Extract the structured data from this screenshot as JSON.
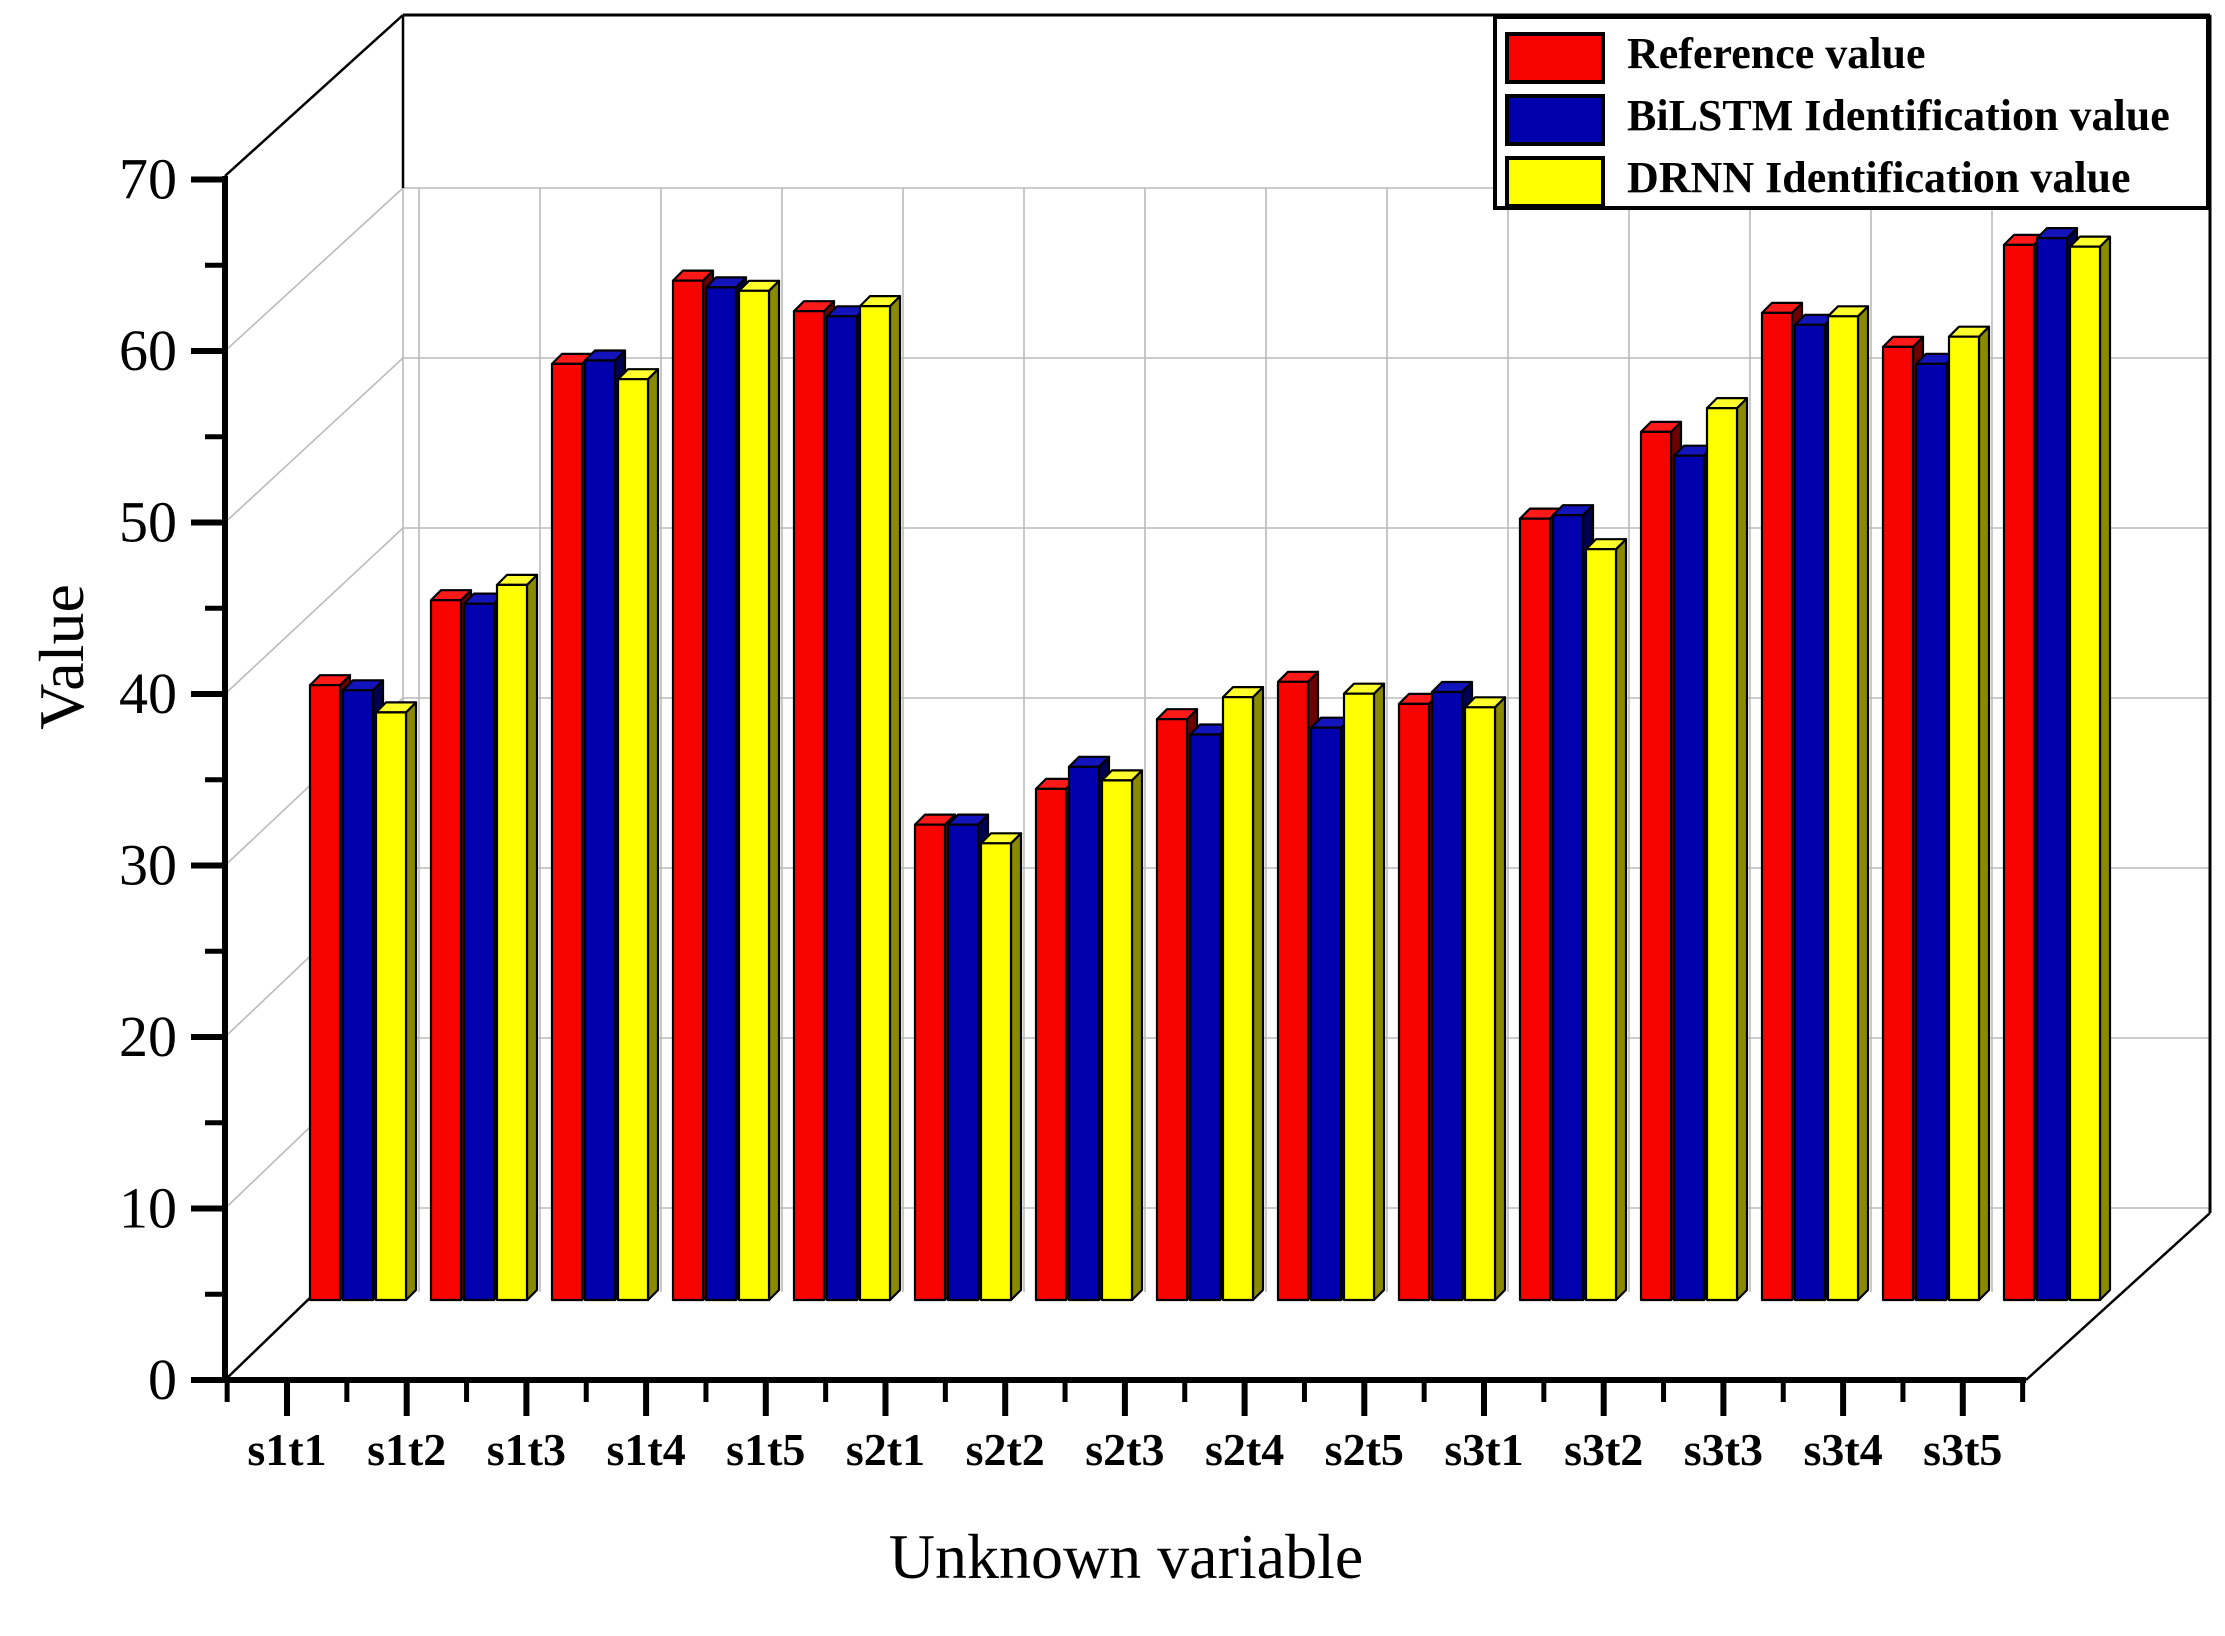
{
  "chart_data": {
    "type": "bar",
    "style": "3d-grouped",
    "title": "",
    "xlabel": "Unknown variable",
    "ylabel": "Value",
    "ylim": [
      0,
      70
    ],
    "y_major_ticks": [
      0,
      10,
      20,
      30,
      40,
      50,
      60,
      70
    ],
    "y_minor_ticks": [
      5,
      15,
      25,
      35,
      45,
      55,
      65
    ],
    "grid": true,
    "legend_position": "top-right",
    "categories": [
      "s1t1",
      "s1t2",
      "s1t3",
      "s1t4",
      "s1t5",
      "s2t1",
      "s2t2",
      "s2t3",
      "s2t4",
      "s2t5",
      "s3t1",
      "s3t2",
      "s3t3",
      "s3t4",
      "s3t5"
    ],
    "series": [
      {
        "name": "Reference value",
        "color": "#f70400",
        "top_color": "#ff1a1a",
        "side_color": "#6d0000",
        "values": [
          40.4,
          45.4,
          59.3,
          64.2,
          62.4,
          32.2,
          34.3,
          38.4,
          40.6,
          39.3,
          50.2,
          55.3,
          62.3,
          60.3,
          66.3
        ]
      },
      {
        "name": "BiLSTM Identification value",
        "color": "#0000ad",
        "top_color": "#1414bc",
        "side_color": "#000052",
        "values": [
          40.1,
          45.2,
          59.5,
          63.8,
          62.1,
          32.2,
          35.6,
          37.5,
          37.9,
          40.0,
          50.4,
          53.9,
          61.6,
          59.3,
          66.7
        ]
      },
      {
        "name": "DRNN Identification value",
        "color": "#ffff00",
        "top_color": "#ffff2e",
        "side_color": "#8a8a00",
        "values": [
          38.8,
          46.3,
          58.4,
          63.6,
          62.7,
          31.1,
          34.8,
          39.7,
          39.9,
          39.1,
          48.4,
          56.7,
          62.1,
          60.9,
          66.2
        ]
      }
    ]
  },
  "axes": {
    "y_label": "Value",
    "x_label": "Unknown variable",
    "y_tick_labels": [
      "0",
      "10",
      "20",
      "30",
      "40",
      "50",
      "60",
      "70"
    ]
  },
  "legend": {
    "items": [
      {
        "label": "Reference value",
        "color": "#f70400"
      },
      {
        "label": "BiLSTM Identification value",
        "color": "#0000ad"
      },
      {
        "label": "DRNN Identification value",
        "color": "#ffff00"
      }
    ]
  },
  "colors": {
    "gridline": "#bbbbbb",
    "frame": "#000000",
    "background": "#ffffff"
  }
}
